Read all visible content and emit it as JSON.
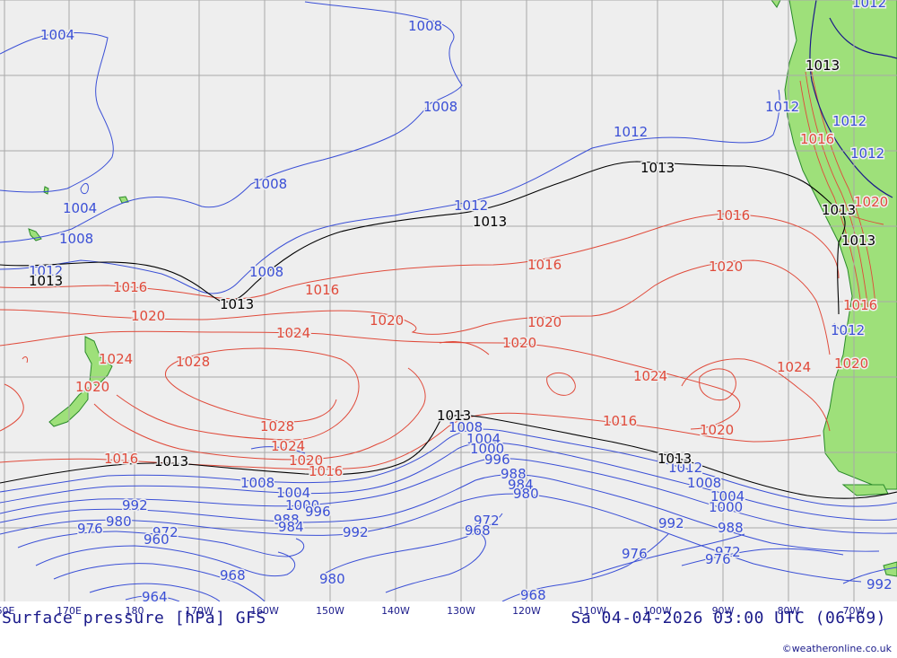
{
  "map": {
    "title": "Surface pressure [hPa] GFS",
    "valid_time": "Sa 04-04-2026 03:00 UTC (06+69)",
    "credit": "©weatheronline.co.uk",
    "colors": {
      "ocean": "#eeeeee",
      "land": "#9ee07a",
      "low_isobar": "#3a4fd6",
      "high_isobar": "#e04a3a",
      "reference_isobar": "#000000",
      "grid": "#a8a8a8",
      "text": "#1a1a8a"
    },
    "longitude_ticks": [
      "60E",
      "170E",
      "180",
      "170W",
      "160W",
      "150W",
      "140W",
      "130W",
      "120W",
      "110W",
      "100W",
      "90W",
      "80W",
      "70W"
    ],
    "isobar_labels": {
      "blue": [
        "1004",
        "1008",
        "1008",
        "1008",
        "1012",
        "1012",
        "1004",
        "1008",
        "1008",
        "1012",
        "1012",
        "1012",
        "1012",
        "1012",
        "1012",
        "1008",
        "1004",
        "1000",
        "996",
        "1008",
        "1004",
        "1000",
        "996",
        "992",
        "988",
        "984",
        "980",
        "976",
        "972",
        "968",
        "964",
        "960",
        "992",
        "988",
        "984",
        "980",
        "972",
        "968",
        "968",
        "976",
        "972",
        "988",
        "992",
        "1000",
        "1004",
        "1008",
        "1012",
        "992",
        "980",
        "976"
      ],
      "red": [
        "1016",
        "1016",
        "1016",
        "1016",
        "1020",
        "1020",
        "1020",
        "1020",
        "1020",
        "1020",
        "1024",
        "1024",
        "1024",
        "1024",
        "1028",
        "1028",
        "1024",
        "1020",
        "1016",
        "1016",
        "1016",
        "1020",
        "1020",
        "1020",
        "1016",
        "1016"
      ],
      "black": [
        "1013",
        "1013",
        "1013",
        "1013",
        "1013",
        "1013",
        "1013",
        "1013",
        "1013",
        "1013"
      ]
    }
  }
}
